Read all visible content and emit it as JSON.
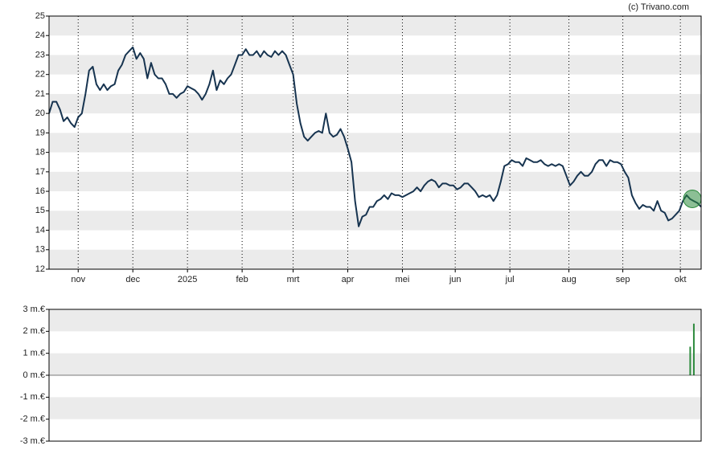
{
  "chart_data": [
    {
      "type": "line",
      "annotation": "(c) Trivano.com",
      "color": "#173450",
      "values": [
        20.0,
        20.6,
        20.6,
        20.2,
        19.6,
        19.8,
        19.5,
        19.3,
        19.8,
        20,
        21,
        22.2,
        22.4,
        21.5,
        21.2,
        21.5,
        21.2,
        21.4,
        21.5,
        22.2,
        22.5,
        23.0,
        23.2,
        23.4,
        22.8,
        23.1,
        22.8,
        21.8,
        22.6,
        22.0,
        21.8,
        21.8,
        21.5,
        21.0,
        21.0,
        20.8,
        21.0,
        21.1,
        21.4,
        21.3,
        21.2,
        21.0,
        20.7,
        21.0,
        21.5,
        22.2,
        21.2,
        21.7,
        21.5,
        21.8,
        22.0,
        22.5,
        23.0,
        23.0,
        23.3,
        23.0,
        23.0,
        23.2,
        22.9,
        23.2,
        23.0,
        22.9,
        23.2,
        23.0,
        23.2,
        23.0,
        22.5,
        22.0,
        20.5,
        19.5,
        18.8,
        18.6,
        18.8,
        19.0,
        19.1,
        19.0,
        20.0,
        19.0,
        18.8,
        18.9,
        19.2,
        18.8,
        18.2,
        17.5,
        15.5,
        14.2,
        14.7,
        14.8,
        15.2,
        15.2,
        15.5,
        15.6,
        15.8,
        15.6,
        15.9,
        15.8,
        15.8,
        15.7,
        15.8,
        15.9,
        16.0,
        16.2,
        16.0,
        16.3,
        16.5,
        16.6,
        16.5,
        16.2,
        16.4,
        16.4,
        16.3,
        16.3,
        16.1,
        16.2,
        16.4,
        16.4,
        16.2,
        16.0,
        15.7,
        15.8,
        15.7,
        15.8,
        15.5,
        15.8,
        16.5,
        17.3,
        17.4,
        17.6,
        17.5,
        17.5,
        17.3,
        17.7,
        17.6,
        17.5,
        17.5,
        17.6,
        17.4,
        17.3,
        17.4,
        17.3,
        17.4,
        17.3,
        16.8,
        16.3,
        16.5,
        16.8,
        17.0,
        16.8,
        16.8,
        17.0,
        17.4,
        17.6,
        17.6,
        17.3,
        17.6,
        17.5,
        17.5,
        17.4,
        17.0,
        16.7,
        15.8,
        15.4,
        15.1,
        15.3,
        15.2,
        15.2,
        15.0,
        15.5,
        15.0,
        14.9,
        14.5,
        14.6,
        14.8,
        15.0,
        15.5,
        15.8,
        15.6,
        15.5,
        15.4,
        15.2
      ],
      "xlim": [
        0,
        179
      ],
      "xticks": [
        {
          "value": 8,
          "label": "nov"
        },
        {
          "value": 23,
          "label": "dec"
        },
        {
          "value": 38,
          "label": "2025"
        },
        {
          "value": 53,
          "label": "feb"
        },
        {
          "value": 67,
          "label": "mrt"
        },
        {
          "value": 82,
          "label": "apr"
        },
        {
          "value": 97,
          "label": "mei"
        },
        {
          "value": 111.5,
          "label": "jun"
        },
        {
          "value": 126.5,
          "label": "jul"
        },
        {
          "value": 142.7,
          "label": "aug"
        },
        {
          "value": 157.5,
          "label": "sep"
        },
        {
          "value": 173.3,
          "label": "okt"
        }
      ],
      "ylim": [
        12,
        25
      ],
      "yticks": [
        12,
        13,
        14,
        15,
        16,
        17,
        18,
        19,
        20,
        21,
        22,
        23,
        24,
        25
      ],
      "grid": "bands"
    },
    {
      "type": "bar",
      "color": "#2e8b3e",
      "x": [
        176,
        177
      ],
      "values": [
        1.3,
        2.35
      ],
      "xlim": [
        0,
        179
      ],
      "ylim": [
        -3,
        3
      ],
      "yticks": [
        {
          "value": -3,
          "label": "-3 m.€"
        },
        {
          "value": -2,
          "label": "-2 m.€"
        },
        {
          "value": -1,
          "label": "-1 m.€"
        },
        {
          "value": 0,
          "label": "0 m.€"
        },
        {
          "value": 1,
          "label": "1 m.€"
        },
        {
          "value": 2,
          "label": "2 m.€"
        },
        {
          "value": 3,
          "label": "3 m.€"
        }
      ],
      "grid": "bands"
    }
  ]
}
